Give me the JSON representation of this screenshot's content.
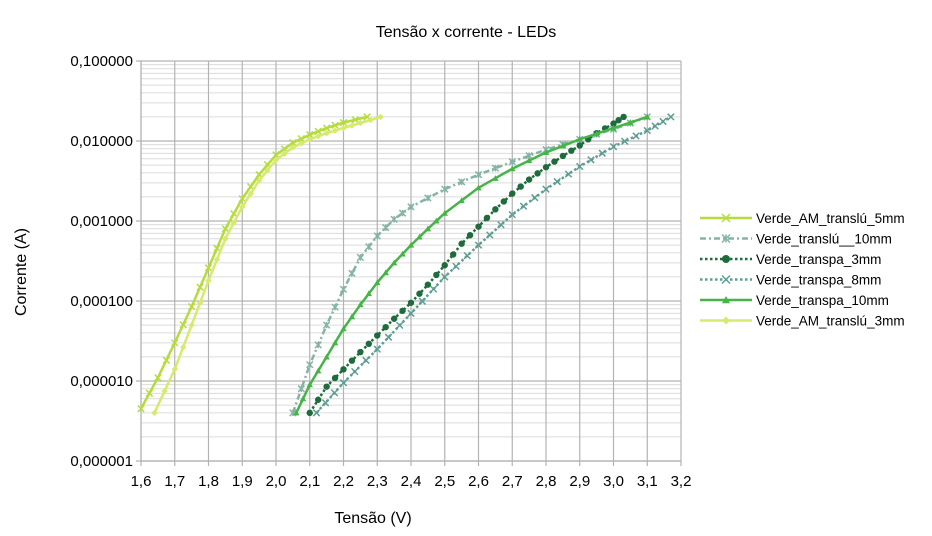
{
  "chart_data": {
    "type": "line",
    "title": "Tensão x corrente - LEDs",
    "xlabel": "Tensão (V)",
    "ylabel": "Corrente (A)",
    "xlim": [
      1.6,
      3.2
    ],
    "ylim": [
      1e-06,
      0.1
    ],
    "yscale": "log",
    "grid": true,
    "legend_position": "right",
    "x_ticks": [
      "1,6",
      "1,7",
      "1,8",
      "1,9",
      "2,0",
      "2,1",
      "2,2",
      "2,3",
      "2,4",
      "2,5",
      "2,6",
      "2,7",
      "2,8",
      "2,9",
      "3,0",
      "3,1",
      "3,2"
    ],
    "y_ticks": [
      "0,100000",
      "0,010000",
      "0,001000",
      "0,000100",
      "0,000010",
      "0,000001"
    ],
    "series": [
      {
        "name": "Verde_AM_translú_5mm",
        "color": "#b5dc3c",
        "marker": "x",
        "dash": "solid",
        "points": [
          [
            1.6,
            4.5e-06
          ],
          [
            1.65,
            1.1e-05
          ],
          [
            1.7,
            3e-05
          ],
          [
            1.75,
            8.5e-05
          ],
          [
            1.8,
            0.00026
          ],
          [
            1.85,
            0.0008
          ],
          [
            1.9,
            0.0019
          ],
          [
            1.95,
            0.0038
          ],
          [
            2.0,
            0.0067
          ],
          [
            2.05,
            0.0095
          ],
          [
            2.1,
            0.012
          ],
          [
            2.15,
            0.0145
          ],
          [
            2.2,
            0.017
          ],
          [
            2.27,
            0.02
          ]
        ]
      },
      {
        "name": "Verde_translú__10mm",
        "color": "#86b3a8",
        "marker": "asterisk",
        "dash": "dashdot",
        "points": [
          [
            2.05,
            4e-06
          ],
          [
            2.1,
            1.6e-05
          ],
          [
            2.15,
            5e-05
          ],
          [
            2.2,
            0.00014
          ],
          [
            2.25,
            0.00035
          ],
          [
            2.3,
            0.00065
          ],
          [
            2.35,
            0.00105
          ],
          [
            2.4,
            0.0015
          ],
          [
            2.5,
            0.0025
          ],
          [
            2.6,
            0.0038
          ],
          [
            2.7,
            0.0055
          ],
          [
            2.8,
            0.0078
          ],
          [
            2.9,
            0.0105
          ],
          [
            3.0,
            0.014
          ],
          [
            3.1,
            0.02
          ]
        ]
      },
      {
        "name": "Verde_transpa_3mm",
        "color": "#1e6b3c",
        "marker": "circle",
        "dash": "dotted",
        "points": [
          [
            2.1,
            4e-06
          ],
          [
            2.15,
            8.5e-06
          ],
          [
            2.2,
            1.4e-05
          ],
          [
            2.25,
            2.3e-05
          ],
          [
            2.3,
            3.7e-05
          ],
          [
            2.35,
            6e-05
          ],
          [
            2.4,
            9.5e-05
          ],
          [
            2.45,
            0.00016
          ],
          [
            2.5,
            0.00028
          ],
          [
            2.55,
            0.00052
          ],
          [
            2.6,
            0.00085
          ],
          [
            2.65,
            0.0014
          ],
          [
            2.7,
            0.0022
          ],
          [
            2.75,
            0.0033
          ],
          [
            2.8,
            0.0047
          ],
          [
            2.85,
            0.0065
          ],
          [
            2.9,
            0.0088
          ],
          [
            2.95,
            0.0125
          ],
          [
            3.0,
            0.0165
          ],
          [
            3.03,
            0.02
          ]
        ]
      },
      {
        "name": "Verde_transpa_8mm",
        "color": "#5e9e92",
        "marker": "x",
        "dash": "dotted",
        "points": [
          [
            2.12,
            4e-06
          ],
          [
            2.2,
            9.5e-06
          ],
          [
            2.3,
            2.5e-05
          ],
          [
            2.4,
            7e-05
          ],
          [
            2.5,
            0.0002
          ],
          [
            2.6,
            0.0005
          ],
          [
            2.7,
            0.0012
          ],
          [
            2.8,
            0.0025
          ],
          [
            2.9,
            0.0048
          ],
          [
            3.0,
            0.0085
          ],
          [
            3.1,
            0.0135
          ],
          [
            3.17,
            0.02
          ]
        ]
      },
      {
        "name": "Verde_transpa_10mm",
        "color": "#46b447",
        "marker": "triangle",
        "dash": "solid",
        "points": [
          [
            2.06,
            4e-06
          ],
          [
            2.1,
            9e-06
          ],
          [
            2.15,
            2e-05
          ],
          [
            2.2,
            4.5e-05
          ],
          [
            2.25,
            9e-05
          ],
          [
            2.3,
            0.00017
          ],
          [
            2.35,
            0.0003
          ],
          [
            2.4,
            0.0005
          ],
          [
            2.45,
            0.0008
          ],
          [
            2.5,
            0.00125
          ],
          [
            2.6,
            0.0026
          ],
          [
            2.7,
            0.0045
          ],
          [
            2.8,
            0.0072
          ],
          [
            2.9,
            0.0105
          ],
          [
            3.0,
            0.0145
          ],
          [
            3.1,
            0.02
          ]
        ]
      },
      {
        "name": "Verde_AM_translú_3mm",
        "color": "#d6ea6e",
        "marker": "diamond",
        "dash": "solid",
        "points": [
          [
            1.64,
            4e-06
          ],
          [
            1.7,
            1.4e-05
          ],
          [
            1.75,
            5e-05
          ],
          [
            1.8,
            0.00018
          ],
          [
            1.85,
            0.0006
          ],
          [
            1.9,
            0.0015
          ],
          [
            1.95,
            0.0032
          ],
          [
            2.0,
            0.0058
          ],
          [
            2.05,
            0.0083
          ],
          [
            2.1,
            0.0105
          ],
          [
            2.15,
            0.0125
          ],
          [
            2.2,
            0.0145
          ],
          [
            2.25,
            0.0168
          ],
          [
            2.31,
            0.02
          ]
        ]
      }
    ]
  },
  "labels": {
    "title": "Tensão x corrente - LEDs",
    "xlabel": "Tensão (V)",
    "ylabel": "Corrente (A)"
  }
}
